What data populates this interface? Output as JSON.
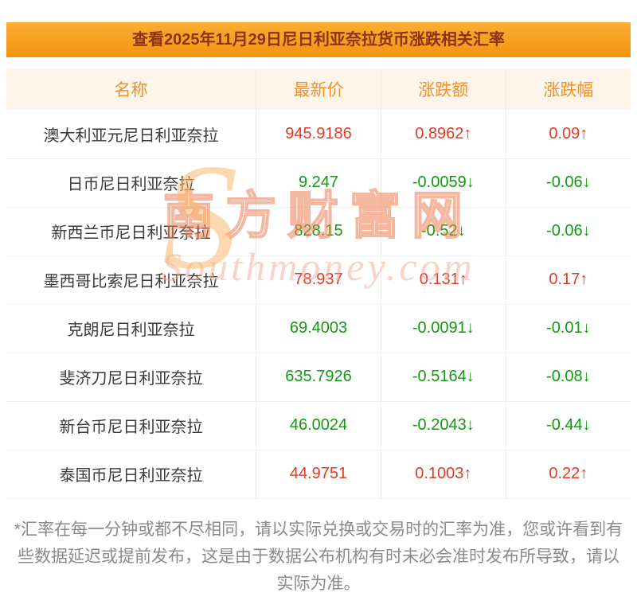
{
  "header": {
    "title": "查看2025年11月29日尼日利亚奈拉货币涨跌相关汇率"
  },
  "table": {
    "columns": {
      "name": "名称",
      "price": "最新价",
      "change": "涨跌额",
      "pct": "涨跌幅"
    },
    "rows": [
      {
        "name": "澳大利亚元尼日利亚奈拉",
        "price": "945.9186",
        "change": "0.8962↑",
        "pct": "0.09↑",
        "trend": "up"
      },
      {
        "name": "日币尼日利亚奈拉",
        "price": "9.247",
        "change": "-0.0059↓",
        "pct": "-0.06↓",
        "trend": "down"
      },
      {
        "name": "新西兰币尼日利亚奈拉",
        "price": "828.15",
        "change": "-0.52↓",
        "pct": "-0.06↓",
        "trend": "down"
      },
      {
        "name": "墨西哥比索尼日利亚奈拉",
        "price": "78.937",
        "change": "0.131↑",
        "pct": "0.17↑",
        "trend": "up"
      },
      {
        "name": "克朗尼日利亚奈拉",
        "price": "69.4003",
        "change": "-0.0091↓",
        "pct": "-0.01↓",
        "trend": "down"
      },
      {
        "name": "斐济刀尼日利亚奈拉",
        "price": "635.7926",
        "change": "-0.5164↓",
        "pct": "-0.08↓",
        "trend": "down"
      },
      {
        "name": "新台币尼日利亚奈拉",
        "price": "46.0024",
        "change": "-0.2043↓",
        "pct": "-0.44↓",
        "trend": "down"
      },
      {
        "name": "泰国币尼日利亚奈拉",
        "price": "44.9751",
        "change": "0.1003↑",
        "pct": "0.22↑",
        "trend": "up"
      }
    ]
  },
  "watermark": {
    "initial": "S",
    "cn": "南方财富网",
    "en": "Southmoney.com"
  },
  "footer": {
    "note": "*汇率在每一分钟或都不尽相同，请以实际兑换或交易时的汇率为准，您或许看到有些数据延迟或提前发布，这是由于数据公布机构有时未必会准时发布所导致，请以实际为准。"
  },
  "colors": {
    "accent": "#f2930f",
    "title-text": "#8c3217",
    "up": "#e23a23",
    "down": "#0f9b0f"
  }
}
